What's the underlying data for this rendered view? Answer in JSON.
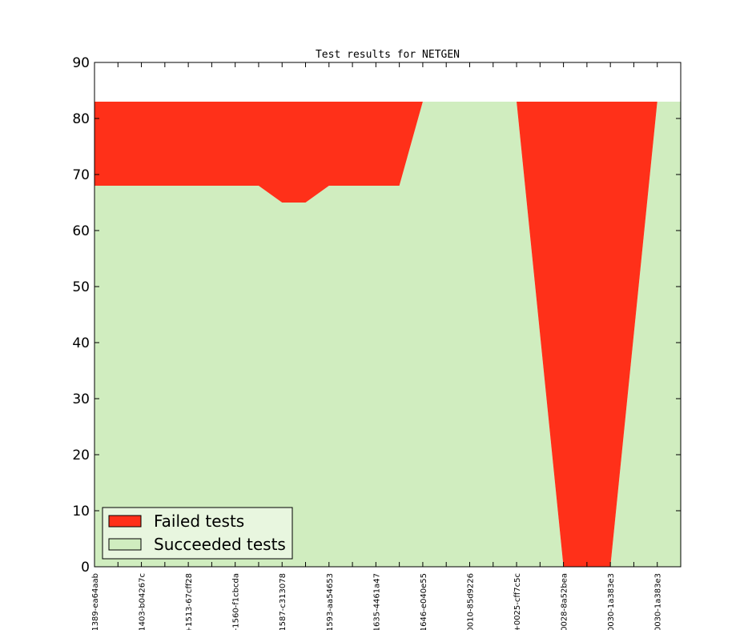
{
  "chart_data": {
    "type": "area",
    "title": "Test results for NETGEN",
    "xlabel": "",
    "ylabel": "",
    "ylim": [
      0,
      90
    ],
    "yticks": [
      0,
      10,
      20,
      30,
      40,
      50,
      60,
      70,
      80,
      90
    ],
    "categories": [
      "1389-ea64aab",
      "1403-b04267c",
      "+1513-67cff28",
      "-1560-f1cbcda",
      "1587-c313078",
      "1593-aa54653",
      "1635-4461a47",
      "1646-e040e55",
      "0010-85d9226",
      "+0025-cff7c5c",
      "0028-8a52bea",
      "0030-1a383e3",
      "0030-1a383e3"
    ],
    "x": [
      0,
      1,
      2,
      3,
      3.5,
      4,
      4.5,
      5,
      6,
      6.5,
      7,
      8,
      9,
      10,
      11,
      12
    ],
    "series": [
      {
        "name": "Succeeded tests",
        "color": "#d0edbf",
        "values": [
          68,
          68,
          68,
          68,
          68,
          65,
          65,
          68,
          68,
          68,
          83,
          83,
          83,
          0,
          0,
          83
        ]
      },
      {
        "name": "Failed tests",
        "color": "#ff3019",
        "values": [
          15,
          15,
          15,
          15,
          15,
          18,
          18,
          15,
          15,
          15,
          0,
          0,
          0,
          83,
          83,
          0
        ]
      }
    ],
    "extra_points": {
      "succeeded_tail": [
        [
          12.5,
          83
        ]
      ],
      "failed_tail": [
        [
          12.5,
          0
        ]
      ]
    },
    "legend": {
      "position": "lower-left",
      "entries": [
        "Failed tests",
        "Succeeded tests"
      ]
    },
    "grid": false
  }
}
